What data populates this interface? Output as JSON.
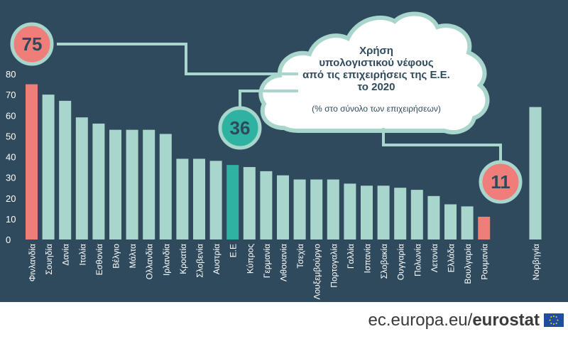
{
  "chart_data": {
    "type": "bar",
    "title": "Χρήση υπολογιστικού νέφους από τις επιχειρήσεις της Ε.Ε. το 2020",
    "title_lines": [
      "Χρήση",
      "υπολογιστικού νέφους",
      "από τις επιχειρήσεις της Ε.Ε.",
      "το 2020"
    ],
    "subtitle": "(% στο σύνολο των επιχειρήσεων)",
    "xlabel": "",
    "ylabel": "",
    "ylim": [
      0,
      80
    ],
    "yticks": [
      0,
      10,
      20,
      30,
      40,
      50,
      60,
      70,
      80
    ],
    "grid": false,
    "categories": [
      "Φινλανδία",
      "Σουηδία",
      "Δανία",
      "Ιταλία",
      "Εσθονία",
      "Βέλγιο",
      "Μάλτα",
      "Ολλανδία",
      "Ιρλανδία",
      "Κροατία",
      "Σλοβενία",
      "Αυστρία",
      "Ε.Ε",
      "Κύπρος",
      "Γερμανία",
      "Λιθουανία",
      "Τσεχία",
      "Λουξεμβούργο",
      "Πορτογαλία",
      "Γαλλία",
      "Ισπανία",
      "Σλοβακία",
      "Ουγγαρία",
      "Πολωνία",
      "Λετονία",
      "Ελλάδα",
      "Βουλγαρία",
      "Ρουμανία",
      "Νορβηγία"
    ],
    "values": [
      75,
      70,
      67,
      59,
      56,
      53,
      53,
      53,
      51,
      39,
      39,
      38,
      36,
      35,
      33,
      31,
      29,
      29,
      29,
      27,
      26,
      26,
      25,
      24,
      21,
      17,
      16,
      11,
      64
    ],
    "highlights": [
      {
        "category": "Φινλανδία",
        "label": "75"
      },
      {
        "category": "Ε.Ε",
        "label": "36"
      },
      {
        "category": "Ρουμανία",
        "label": "11"
      }
    ]
  },
  "colors": {
    "background": "#2e4a5c",
    "bar_default": "#a9d6cc",
    "bar_high_low": "#ef7e7b",
    "bar_eu": "#2fb3a0",
    "cloud_fill": "#ffffff",
    "cloud_stroke": "#a9d6cc",
    "circle_fill": "#ef7e7b",
    "circle_eu_fill": "#2fb3a0",
    "axis_text": "#ffffff",
    "title_text": "#2e4a5c"
  },
  "footer": {
    "site": "ec.europa.eu/",
    "brand": "eurostat",
    "flag_icon": "eu-flag-icon"
  }
}
